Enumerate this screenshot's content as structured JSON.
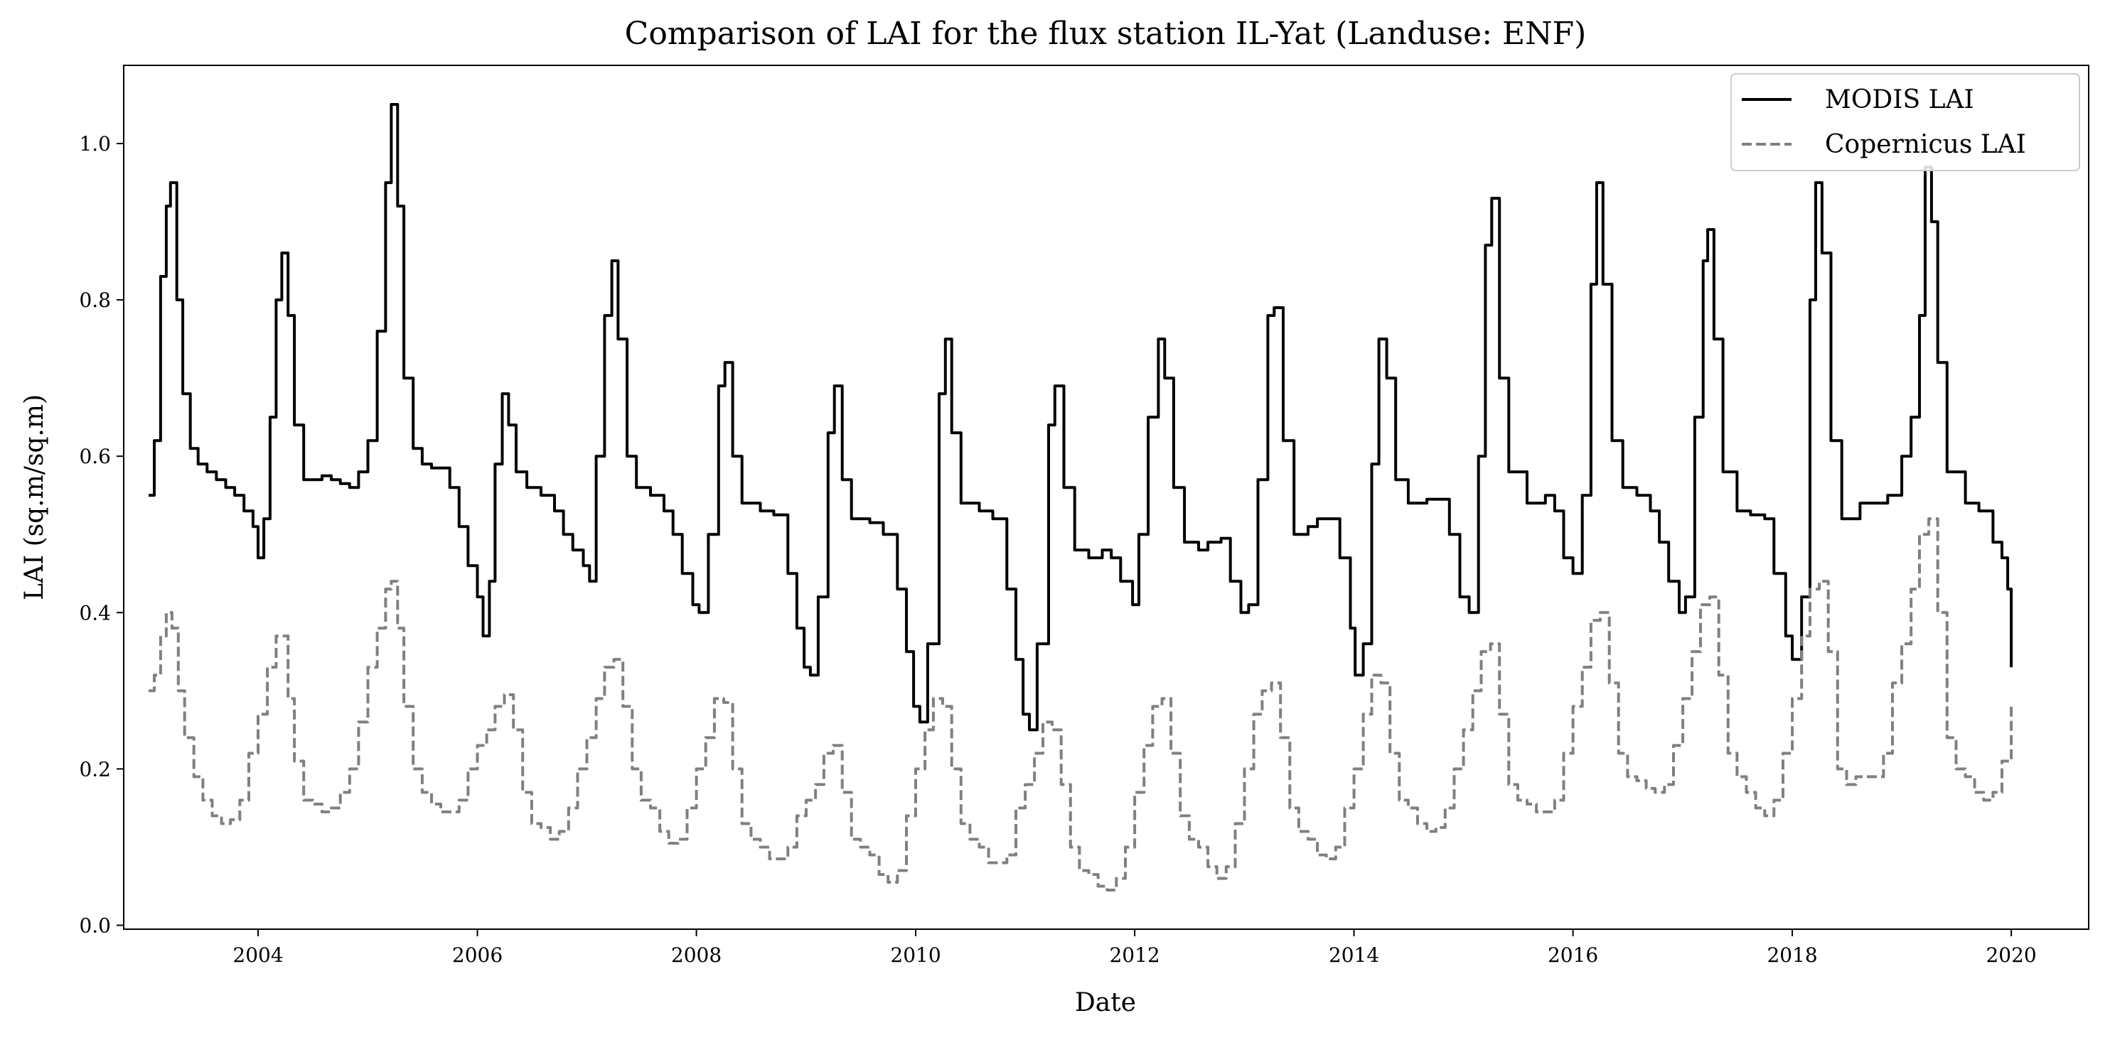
{
  "chart_data": {
    "type": "line",
    "title": "Comparison of LAI for the flux station IL-Yat (Landuse: ENF)",
    "xlabel": "Date",
    "ylabel": "LAI (sq.m/sq.m)",
    "xlim": [
      "2002-10-10",
      "2020-09-15"
    ],
    "ylim": [
      -0.005,
      1.1
    ],
    "xticks": [
      "2004",
      "2006",
      "2008",
      "2010",
      "2012",
      "2014",
      "2016",
      "2018",
      "2020"
    ],
    "yticks": [
      "0.0",
      "0.2",
      "0.4",
      "0.6",
      "0.8",
      "1.0"
    ],
    "grid": false,
    "legend_position": "top-right",
    "colors": {
      "modis": "#000000",
      "copernicus": "#808080"
    },
    "series": [
      {
        "name": "MODIS LAI",
        "style": "solid",
        "x": [
          "2003-01-01",
          "2003-01-20",
          "2003-02-10",
          "2003-03-01",
          "2003-03-15",
          "2003-04-05",
          "2003-04-25",
          "2003-05-20",
          "2003-06-15",
          "2003-07-15",
          "2003-08-15",
          "2003-09-15",
          "2003-10-15",
          "2003-11-15",
          "2003-12-15",
          "2004-01-01",
          "2004-01-20",
          "2004-02-10",
          "2004-03-01",
          "2004-03-20",
          "2004-04-10",
          "2004-05-01",
          "2004-06-01",
          "2004-07-01",
          "2004-08-01",
          "2004-09-01",
          "2004-10-01",
          "2004-11-01",
          "2004-12-01",
          "2005-01-01",
          "2005-02-01",
          "2005-03-01",
          "2005-03-20",
          "2005-04-10",
          "2005-05-01",
          "2005-06-01",
          "2005-07-01",
          "2005-08-01",
          "2005-09-01",
          "2005-10-01",
          "2005-11-01",
          "2005-12-01",
          "2006-01-01",
          "2006-01-20",
          "2006-02-10",
          "2006-03-01",
          "2006-03-25",
          "2006-04-15",
          "2006-05-10",
          "2006-06-15",
          "2006-08-01",
          "2006-09-15",
          "2006-10-15",
          "2006-11-15",
          "2006-12-20",
          "2007-01-10",
          "2007-02-01",
          "2007-03-01",
          "2007-03-25",
          "2007-04-15",
          "2007-05-15",
          "2007-06-15",
          "2007-08-01",
          "2007-09-15",
          "2007-10-15",
          "2007-11-15",
          "2007-12-20",
          "2008-01-10",
          "2008-02-10",
          "2008-03-15",
          "2008-04-05",
          "2008-05-01",
          "2008-06-01",
          "2008-08-01",
          "2008-09-15",
          "2008-11-01",
          "2008-12-01",
          "2008-12-25",
          "2009-01-15",
          "2009-02-10",
          "2009-03-15",
          "2009-04-05",
          "2009-05-01",
          "2009-06-01",
          "2009-08-01",
          "2009-09-15",
          "2009-11-01",
          "2009-12-01",
          "2009-12-25",
          "2010-01-15",
          "2010-02-10",
          "2010-03-20",
          "2010-04-10",
          "2010-05-01",
          "2010-06-01",
          "2010-08-01",
          "2010-09-15",
          "2010-11-01",
          "2010-12-01",
          "2010-12-25",
          "2011-01-15",
          "2011-02-10",
          "2011-03-20",
          "2011-04-10",
          "2011-05-10",
          "2011-06-15",
          "2011-08-01",
          "2011-09-15",
          "2011-10-15",
          "2011-11-15",
          "2011-12-25",
          "2012-01-15",
          "2012-02-15",
          "2012-03-20",
          "2012-04-10",
          "2012-05-10",
          "2012-06-15",
          "2012-08-01",
          "2012-09-01",
          "2012-10-15",
          "2012-11-15",
          "2012-12-20",
          "2013-01-15",
          "2013-02-15",
          "2013-03-20",
          "2013-04-10",
          "2013-05-10",
          "2013-06-15",
          "2013-08-01",
          "2013-09-01",
          "2013-10-15",
          "2013-11-15",
          "2013-12-20",
          "2014-01-05",
          "2014-02-01",
          "2014-03-01",
          "2014-03-25",
          "2014-04-20",
          "2014-05-20",
          "2014-07-01",
          "2014-09-01",
          "2014-10-15",
          "2014-11-15",
          "2014-12-20",
          "2015-01-20",
          "2015-02-20",
          "2015-03-15",
          "2015-04-05",
          "2015-05-01",
          "2015-06-01",
          "2015-08-01",
          "2015-10-01",
          "2015-11-01",
          "2015-12-01",
          "2016-01-01",
          "2016-02-01",
          "2016-03-01",
          "2016-03-20",
          "2016-04-10",
          "2016-05-10",
          "2016-06-15",
          "2016-08-01",
          "2016-09-15",
          "2016-10-15",
          "2016-11-15",
          "2016-12-20",
          "2017-01-10",
          "2017-02-10",
          "2017-03-10",
          "2017-03-25",
          "2017-04-15",
          "2017-05-15",
          "2017-07-01",
          "2017-08-15",
          "2017-10-01",
          "2017-11-01",
          "2017-12-10",
          "2018-01-01",
          "2018-02-01",
          "2018-03-01",
          "2018-03-20",
          "2018-04-10",
          "2018-05-10",
          "2018-06-15",
          "2018-08-15",
          "2018-10-01",
          "2018-11-15",
          "2019-01-01",
          "2019-02-01",
          "2019-03-01",
          "2019-03-20",
          "2019-04-10",
          "2019-05-01",
          "2019-06-01",
          "2019-08-01",
          "2019-09-15",
          "2019-11-01",
          "2019-12-01",
          "2019-12-20",
          "2020-01-01"
        ],
        "y": [
          0.55,
          0.62,
          0.83,
          0.92,
          0.95,
          0.8,
          0.68,
          0.61,
          0.59,
          0.58,
          0.57,
          0.56,
          0.55,
          0.53,
          0.51,
          0.47,
          0.52,
          0.65,
          0.8,
          0.86,
          0.78,
          0.64,
          0.57,
          0.57,
          0.575,
          0.57,
          0.565,
          0.56,
          0.58,
          0.62,
          0.76,
          0.95,
          1.05,
          0.92,
          0.7,
          0.61,
          0.59,
          0.585,
          0.585,
          0.56,
          0.51,
          0.46,
          0.42,
          0.37,
          0.44,
          0.59,
          0.68,
          0.64,
          0.58,
          0.56,
          0.55,
          0.53,
          0.5,
          0.48,
          0.46,
          0.44,
          0.6,
          0.78,
          0.85,
          0.75,
          0.6,
          0.56,
          0.55,
          0.53,
          0.5,
          0.45,
          0.41,
          0.4,
          0.5,
          0.69,
          0.72,
          0.6,
          0.54,
          0.53,
          0.525,
          0.45,
          0.38,
          0.33,
          0.32,
          0.42,
          0.63,
          0.69,
          0.57,
          0.52,
          0.515,
          0.5,
          0.43,
          0.35,
          0.28,
          0.26,
          0.36,
          0.68,
          0.75,
          0.63,
          0.54,
          0.53,
          0.52,
          0.43,
          0.34,
          0.27,
          0.25,
          0.36,
          0.64,
          0.69,
          0.56,
          0.48,
          0.47,
          0.48,
          0.47,
          0.44,
          0.41,
          0.5,
          0.65,
          0.75,
          0.7,
          0.56,
          0.49,
          0.48,
          0.49,
          0.495,
          0.44,
          0.4,
          0.41,
          0.57,
          0.78,
          0.79,
          0.62,
          0.5,
          0.51,
          0.52,
          0.52,
          0.47,
          0.38,
          0.32,
          0.36,
          0.59,
          0.75,
          0.7,
          0.57,
          0.54,
          0.545,
          0.545,
          0.5,
          0.42,
          0.4,
          0.6,
          0.87,
          0.93,
          0.7,
          0.58,
          0.54,
          0.55,
          0.53,
          0.47,
          0.45,
          0.55,
          0.82,
          0.95,
          0.82,
          0.62,
          0.56,
          0.55,
          0.53,
          0.49,
          0.44,
          0.4,
          0.42,
          0.65,
          0.85,
          0.89,
          0.75,
          0.58,
          0.53,
          0.525,
          0.52,
          0.45,
          0.37,
          0.34,
          0.42,
          0.8,
          0.95,
          0.86,
          0.62,
          0.52,
          0.54,
          0.54,
          0.55,
          0.6,
          0.65,
          0.78,
          0.97,
          0.9,
          0.72,
          0.58,
          0.54,
          0.53,
          0.49,
          0.47,
          0.43,
          0.33
        ]
      },
      {
        "name": "Copernicus LAI",
        "style": "dashed",
        "x": [
          "2003-01-01",
          "2003-01-20",
          "2003-02-10",
          "2003-03-01",
          "2003-03-20",
          "2003-04-10",
          "2003-05-01",
          "2003-06-01",
          "2003-07-01",
          "2003-08-01",
          "2003-09-01",
          "2003-10-01",
          "2003-11-01",
          "2003-12-01",
          "2004-01-01",
          "2004-02-01",
          "2004-03-01",
          "2004-03-20",
          "2004-04-10",
          "2004-05-01",
          "2004-06-01",
          "2004-07-01",
          "2004-08-01",
          "2004-09-01",
          "2004-10-01",
          "2004-11-01",
          "2004-12-01",
          "2005-01-01",
          "2005-02-01",
          "2005-03-01",
          "2005-03-20",
          "2005-04-10",
          "2005-05-01",
          "2005-06-01",
          "2005-07-01",
          "2005-08-01",
          "2005-09-01",
          "2005-10-01",
          "2005-11-01",
          "2005-12-01",
          "2006-01-01",
          "2006-02-01",
          "2006-03-01",
          "2006-04-01",
          "2006-05-01",
          "2006-06-01",
          "2006-07-01",
          "2006-08-01",
          "2006-09-01",
          "2006-10-01",
          "2006-11-01",
          "2006-12-01",
          "2007-01-01",
          "2007-02-01",
          "2007-03-01",
          "2007-04-01",
          "2007-05-01",
          "2007-06-01",
          "2007-07-01",
          "2007-08-01",
          "2007-09-01",
          "2007-10-01",
          "2007-11-01",
          "2007-12-01",
          "2008-01-01",
          "2008-02-01",
          "2008-03-01",
          "2008-04-01",
          "2008-05-01",
          "2008-06-01",
          "2008-07-01",
          "2008-08-01",
          "2008-09-01",
          "2008-10-01",
          "2008-11-01",
          "2008-12-01",
          "2009-01-01",
          "2009-02-01",
          "2009-03-01",
          "2009-04-01",
          "2009-05-01",
          "2009-06-01",
          "2009-07-01",
          "2009-08-01",
          "2009-09-01",
          "2009-10-01",
          "2009-11-01",
          "2009-12-01",
          "2010-01-01",
          "2010-02-01",
          "2010-03-01",
          "2010-04-01",
          "2010-05-01",
          "2010-06-01",
          "2010-07-01",
          "2010-08-01",
          "2010-09-01",
          "2010-10-01",
          "2010-11-01",
          "2010-12-01",
          "2011-01-01",
          "2011-02-01",
          "2011-03-01",
          "2011-04-01",
          "2011-05-01",
          "2011-06-01",
          "2011-07-01",
          "2011-08-01",
          "2011-09-01",
          "2011-10-01",
          "2011-11-01",
          "2011-12-01",
          "2012-01-01",
          "2012-02-01",
          "2012-03-01",
          "2012-04-01",
          "2012-05-01",
          "2012-06-01",
          "2012-07-01",
          "2012-08-01",
          "2012-09-01",
          "2012-10-01",
          "2012-11-01",
          "2012-12-01",
          "2013-01-01",
          "2013-02-01",
          "2013-03-01",
          "2013-04-01",
          "2013-05-01",
          "2013-06-01",
          "2013-07-01",
          "2013-08-01",
          "2013-09-01",
          "2013-10-01",
          "2013-11-01",
          "2013-12-01",
          "2014-01-01",
          "2014-02-01",
          "2014-03-01",
          "2014-04-01",
          "2014-05-01",
          "2014-06-01",
          "2014-07-01",
          "2014-08-01",
          "2014-09-01",
          "2014-10-01",
          "2014-11-01",
          "2014-12-01",
          "2015-01-01",
          "2015-02-01",
          "2015-03-01",
          "2015-04-01",
          "2015-05-01",
          "2015-06-01",
          "2015-07-01",
          "2015-08-01",
          "2015-09-01",
          "2015-10-01",
          "2015-11-01",
          "2015-12-01",
          "2016-01-01",
          "2016-02-01",
          "2016-03-01",
          "2016-04-01",
          "2016-05-01",
          "2016-06-01",
          "2016-07-01",
          "2016-08-01",
          "2016-09-01",
          "2016-10-01",
          "2016-11-01",
          "2016-12-01",
          "2017-01-01",
          "2017-02-01",
          "2017-03-01",
          "2017-04-01",
          "2017-05-01",
          "2017-06-01",
          "2017-07-01",
          "2017-08-01",
          "2017-09-01",
          "2017-10-01",
          "2017-11-01",
          "2017-12-01",
          "2018-01-01",
          "2018-02-01",
          "2018-03-01",
          "2018-04-01",
          "2018-05-01",
          "2018-06-01",
          "2018-07-01",
          "2018-08-01",
          "2018-09-01",
          "2018-10-01",
          "2018-11-01",
          "2018-12-01",
          "2019-01-01",
          "2019-02-01",
          "2019-03-01",
          "2019-04-01",
          "2019-05-01",
          "2019-06-01",
          "2019-07-01",
          "2019-08-01",
          "2019-09-01",
          "2019-10-01",
          "2019-11-01",
          "2019-12-01",
          "2020-01-01"
        ],
        "y": [
          0.3,
          0.32,
          0.37,
          0.4,
          0.38,
          0.3,
          0.24,
          0.19,
          0.16,
          0.14,
          0.13,
          0.135,
          0.16,
          0.22,
          0.27,
          0.33,
          0.37,
          0.37,
          0.29,
          0.21,
          0.16,
          0.155,
          0.145,
          0.15,
          0.17,
          0.2,
          0.26,
          0.33,
          0.38,
          0.43,
          0.44,
          0.38,
          0.28,
          0.2,
          0.17,
          0.155,
          0.145,
          0.145,
          0.16,
          0.2,
          0.23,
          0.25,
          0.28,
          0.295,
          0.25,
          0.17,
          0.13,
          0.125,
          0.11,
          0.12,
          0.15,
          0.2,
          0.24,
          0.29,
          0.33,
          0.34,
          0.28,
          0.2,
          0.16,
          0.15,
          0.12,
          0.105,
          0.11,
          0.15,
          0.2,
          0.24,
          0.29,
          0.285,
          0.2,
          0.13,
          0.11,
          0.1,
          0.085,
          0.085,
          0.1,
          0.14,
          0.16,
          0.18,
          0.22,
          0.23,
          0.17,
          0.11,
          0.1,
          0.09,
          0.065,
          0.055,
          0.07,
          0.14,
          0.2,
          0.25,
          0.29,
          0.28,
          0.2,
          0.13,
          0.11,
          0.1,
          0.08,
          0.08,
          0.09,
          0.15,
          0.18,
          0.22,
          0.26,
          0.25,
          0.18,
          0.1,
          0.07,
          0.065,
          0.05,
          0.045,
          0.06,
          0.1,
          0.17,
          0.23,
          0.28,
          0.29,
          0.22,
          0.14,
          0.11,
          0.1,
          0.075,
          0.06,
          0.075,
          0.13,
          0.2,
          0.27,
          0.3,
          0.31,
          0.24,
          0.15,
          0.12,
          0.11,
          0.09,
          0.085,
          0.1,
          0.15,
          0.2,
          0.27,
          0.32,
          0.31,
          0.22,
          0.16,
          0.15,
          0.13,
          0.12,
          0.125,
          0.15,
          0.2,
          0.25,
          0.3,
          0.35,
          0.36,
          0.27,
          0.18,
          0.16,
          0.155,
          0.145,
          0.145,
          0.16,
          0.22,
          0.28,
          0.33,
          0.39,
          0.4,
          0.31,
          0.22,
          0.19,
          0.185,
          0.175,
          0.17,
          0.18,
          0.23,
          0.29,
          0.35,
          0.41,
          0.42,
          0.32,
          0.22,
          0.19,
          0.17,
          0.15,
          0.14,
          0.16,
          0.22,
          0.29,
          0.37,
          0.43,
          0.44,
          0.35,
          0.2,
          0.18,
          0.19,
          0.19,
          0.19,
          0.22,
          0.31,
          0.36,
          0.43,
          0.5,
          0.52,
          0.4,
          0.24,
          0.2,
          0.19,
          0.17,
          0.16,
          0.17,
          0.21,
          0.28
        ]
      }
    ]
  }
}
